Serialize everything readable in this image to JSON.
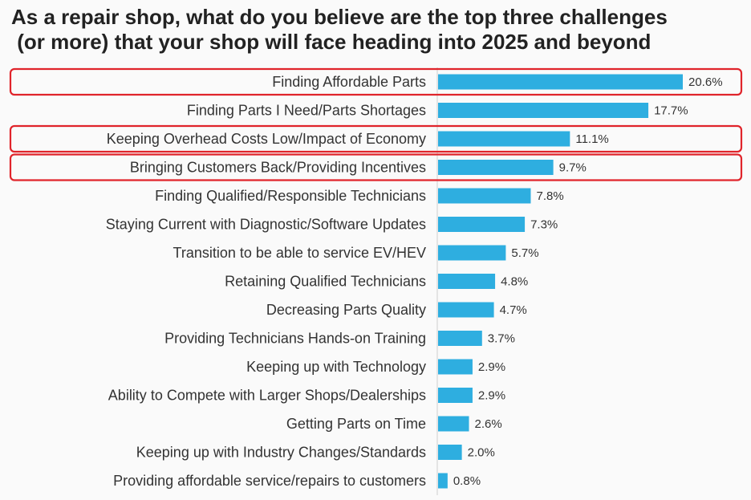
{
  "chart_data": {
    "type": "bar",
    "orientation": "horizontal",
    "title_lines": [
      "As a repair shop, what do you believe are the top three challenges",
      " (or more) that your shop will face heading into 2025 and beyond"
    ],
    "categories": [
      "Finding Affordable Parts",
      "Finding Parts I Need/Parts Shortages",
      "Keeping Overhead Costs Low/Impact of Economy",
      "Bringing Customers Back/Providing Incentives",
      "Finding Qualified/Responsible Technicians",
      "Staying Current with Diagnostic/Software Updates",
      "Transition to be able to service EV/HEV",
      "Retaining Qualified Technicians",
      "Decreasing Parts Quality",
      "Providing Technicians Hands-on Training",
      "Keeping up with Technology",
      "Ability to Compete with Larger Shops/Dealerships",
      "Getting Parts on Time",
      "Keeping up with Industry Changes/Standards",
      "Providing affordable service/repairs to customers"
    ],
    "values": [
      20.6,
      17.7,
      11.1,
      9.7,
      7.8,
      7.3,
      5.7,
      4.8,
      4.7,
      3.7,
      2.9,
      2.9,
      2.6,
      2.0,
      0.8
    ],
    "value_labels": [
      "20.6%",
      "17.7%",
      "11.1%",
      "9.7%",
      "7.8%",
      "7.3%",
      "5.7%",
      "4.8%",
      "4.7%",
      "3.7%",
      "2.9%",
      "2.9%",
      "2.6%",
      "2.0%",
      "0.8%"
    ],
    "highlighted_categories": [
      "Finding Affordable Parts",
      "Keeping Overhead Costs Low/Impact of Economy",
      "Bringing Customers Back/Providing Incentives"
    ],
    "xlim": [
      0,
      20.6
    ],
    "grid": false,
    "legend": "none",
    "colors": {
      "bar": "#2eaee0",
      "highlight_outline": "#e0242b",
      "axis": "#cfcfcf",
      "text": "#333333",
      "title": "#222222"
    }
  }
}
